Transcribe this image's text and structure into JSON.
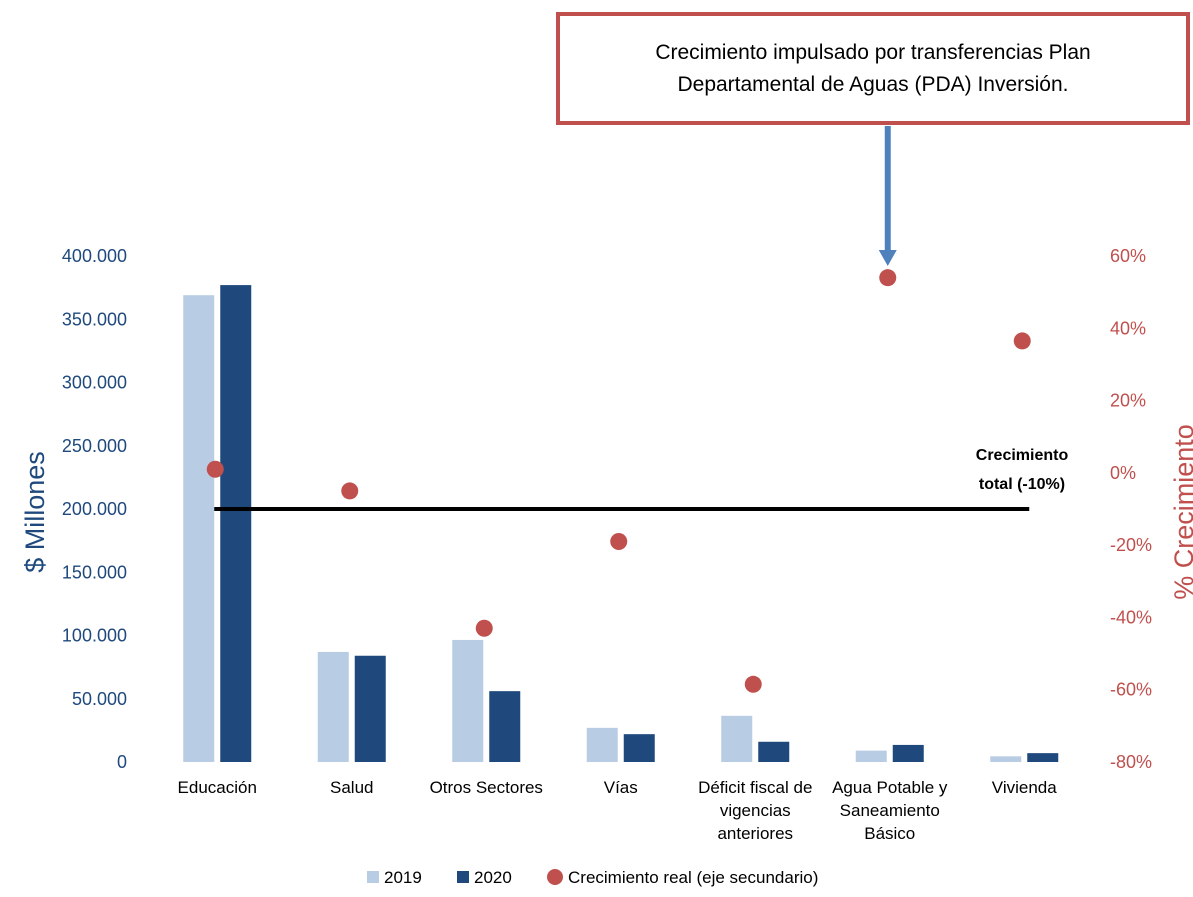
{
  "annotation": {
    "text": "Crecimiento impulsado por transferencias Plan Departamental de Aguas (PDA) Inversión."
  },
  "total_label": {
    "line1": "Crecimiento",
    "line2": "total (-10%)"
  },
  "colors": {
    "series_2019": "#b8cce4",
    "series_2020": "#1f497d",
    "growth": "#c0504d",
    "arrow": "#4f81bd",
    "left_axis": "#1f497d",
    "right_axis": "#c0504d"
  },
  "chart_data": {
    "type": "bar",
    "categories": [
      [
        "Educación"
      ],
      [
        "Salud"
      ],
      [
        "Otros Sectores"
      ],
      [
        "Vías"
      ],
      [
        "Déficit fiscal de",
        "vigencias",
        "anteriores"
      ],
      [
        "Agua Potable y",
        "Saneamiento",
        "Básico"
      ],
      [
        "Vivienda"
      ]
    ],
    "series": [
      {
        "name": "2019",
        "axis": "primary",
        "values": [
          369000,
          87000,
          96500,
          27000,
          36500,
          9000,
          4500
        ]
      },
      {
        "name": "2020",
        "axis": "primary",
        "values": [
          377000,
          84000,
          56000,
          22000,
          16000,
          13500,
          7000
        ]
      },
      {
        "name": "Crecimiento real (eje secundario)",
        "axis": "secondary",
        "type": "scatter",
        "values": [
          0.01,
          -0.05,
          -0.43,
          -0.19,
          -0.585,
          0.54,
          0.365
        ]
      }
    ],
    "reference_line": {
      "value": -0.1,
      "axis": "secondary"
    },
    "ylabel": "$ Millones",
    "y2label": "% Crecimiento",
    "ylim": [
      0,
      400000
    ],
    "y2lim": [
      -0.8,
      0.6
    ],
    "yticks": [
      "0",
      "50.000",
      "100.000",
      "150.000",
      "200.000",
      "250.000",
      "300.000",
      "350.000",
      "400.000"
    ],
    "y2ticks": [
      "-80%",
      "-60%",
      "-40%",
      "-20%",
      "0%",
      "20%",
      "40%",
      "60%"
    ],
    "legend": "bottom",
    "grid": false
  }
}
